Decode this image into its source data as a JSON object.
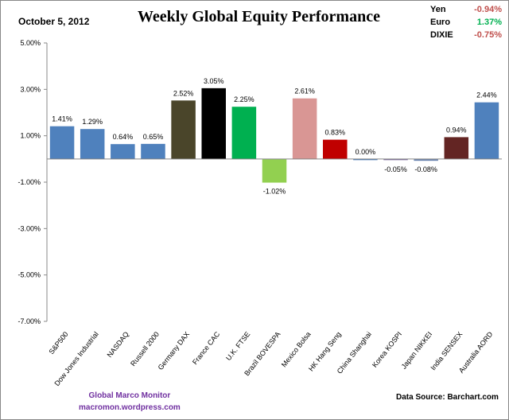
{
  "header": {
    "date": "October 5, 2012",
    "title": "Weekly Global Equity Performance",
    "fx": [
      {
        "label": "Yen",
        "value": "-0.94%",
        "color": "#c0504d"
      },
      {
        "label": "Euro",
        "value": "1.37%",
        "color": "#00b050"
      },
      {
        "label": "DIXIE",
        "value": "-0.75%",
        "color": "#c0504d"
      }
    ]
  },
  "footer": {
    "brand_line1": "Global  Marco  Monitor",
    "brand_line2": "macromon.wordpress.com",
    "source": "Data Source:    Barchart.com"
  },
  "chart_data": {
    "type": "bar",
    "title": "Weekly Global Equity Performance",
    "ylim": [
      -7,
      5
    ],
    "yticks": [
      "5.00%",
      "3.00%",
      "1.00%",
      "-1.00%",
      "-3.00%",
      "-5.00%",
      "-7.00%"
    ],
    "categories": [
      "S&P500",
      "Dow Jones Industrial",
      "NASDAQ",
      "Russell 2000",
      "Germany DAX",
      "France CAC",
      "U.K. FTSE",
      "Brazil BOVESPA",
      "Mexico Bolsa",
      "HK Hang Seng",
      "China Shanghai",
      "Korea KOSPI",
      "Japan NIKKEI",
      "India SENSEX",
      "Australia AORD"
    ],
    "values": [
      1.41,
      1.29,
      0.64,
      0.65,
      2.52,
      3.05,
      2.25,
      -1.02,
      2.61,
      0.83,
      0.0,
      -0.05,
      -0.08,
      0.94,
      2.44
    ],
    "labels": [
      "1.41%",
      "1.29%",
      "0.64%",
      "0.65%",
      "2.52%",
      "3.05%",
      "2.25%",
      "-1.02%",
      "2.61%",
      "0.83%",
      "0.00%",
      "-0.05%",
      "-0.08%",
      "0.94%",
      "2.44%"
    ],
    "colors": [
      "#4f81bd",
      "#4f81bd",
      "#4f81bd",
      "#4f81bd",
      "#4a452a",
      "#000000",
      "#00b050",
      "#92d050",
      "#d99694",
      "#c00000",
      "#4f81bd",
      "#7f6fa0",
      "#6b85b0",
      "#632523",
      "#4f81bd"
    ],
    "grid": false,
    "legend": "none"
  }
}
